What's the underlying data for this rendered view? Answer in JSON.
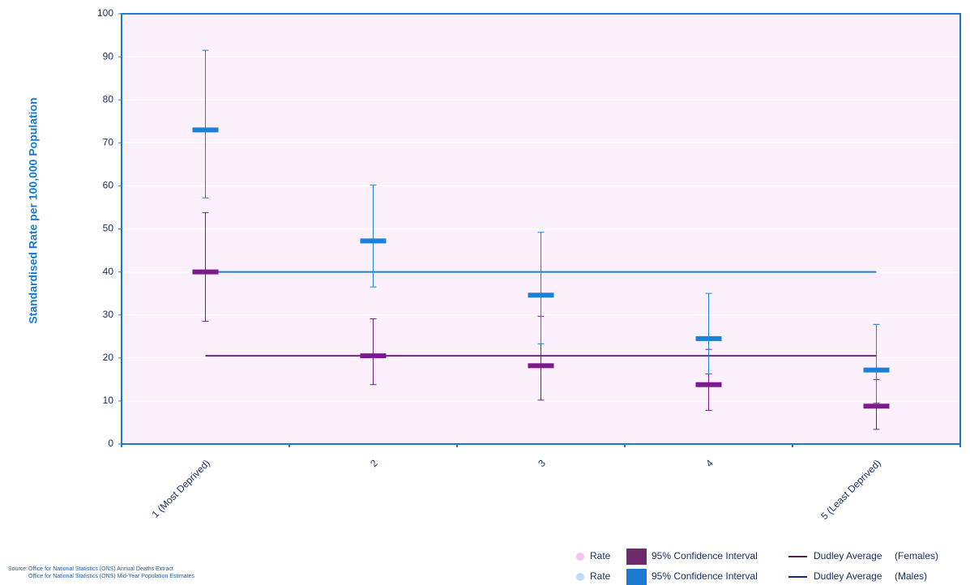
{
  "chart_data": {
    "type": "error-range",
    "y_label": "Standardised Rate per 100,000 Population",
    "categories": [
      "1 (Most Deprived)",
      "2",
      "3",
      "4",
      "5 (Least Deprived)"
    ],
    "ylim": [
      0,
      100
    ],
    "yticks": [
      0,
      10,
      20,
      30,
      40,
      50,
      60,
      70,
      80,
      90,
      100
    ],
    "grid": true,
    "series": [
      {
        "name": "Rate",
        "ci_name": "95% Confidence Interval",
        "average_name": "Dudley Average",
        "group": "(Females)",
        "color": "#7b1a8c",
        "marker_color": "#f2c6f2",
        "ci_color": "#6d2a6d",
        "average_color": "#5a1a4a",
        "values": [
          40,
          20.5,
          18.2,
          13.8,
          8.8
        ],
        "lower": [
          28.5,
          13.8,
          10.2,
          7.8,
          3.4
        ],
        "upper": [
          53.8,
          29.1,
          29.7,
          22,
          15
        ],
        "average": 20.5
      },
      {
        "name": "Rate",
        "ci_name": "95% Confidence Interval",
        "average_name": "Dudley Average",
        "group": "(Males)",
        "color": "#1a82d6",
        "marker_color": "#bfdcf5",
        "ci_color": "#1a7ad0",
        "average_color": "#1a2a6a",
        "values": [
          73,
          47.2,
          34.6,
          24.5,
          17.2
        ],
        "lower": [
          57.2,
          36.5,
          23.3,
          16.3,
          9.5
        ],
        "upper": [
          91.5,
          60.2,
          49.2,
          35,
          27.8
        ],
        "average": 40
      }
    ],
    "source": {
      "label": "Source:",
      "lines": [
        "Office for National Statistics (ONS) Annual Deaths Extract",
        "Office for National Statistics (ONS) Mid-Year Population Estimates"
      ]
    }
  }
}
